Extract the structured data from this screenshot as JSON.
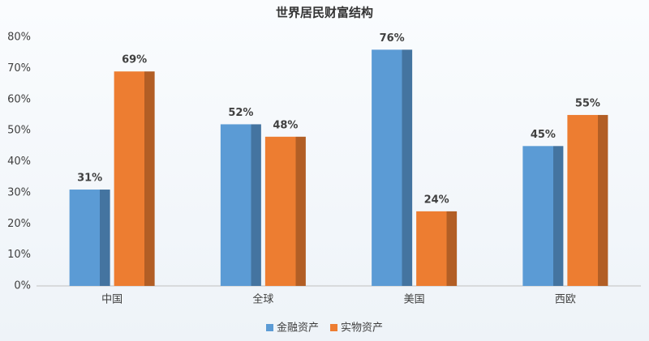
{
  "chart_data": {
    "type": "bar",
    "title": "世界居民财富结构",
    "categories": [
      "中国",
      "全球",
      "美国",
      "西欧"
    ],
    "series": [
      {
        "name": "金融资产",
        "color": "#5b9bd5",
        "values": [
          31,
          52,
          76,
          45
        ],
        "value_labels": [
          "31%",
          "52%",
          "76%",
          "45%"
        ]
      },
      {
        "name": "实物资产",
        "color": "#ed7d31",
        "values": [
          69,
          48,
          24,
          55
        ],
        "value_labels": [
          "69%",
          "48%",
          "24%",
          "55%"
        ]
      }
    ],
    "ylim": [
      0,
      80
    ],
    "yticks": [
      {
        "value": 0,
        "label": "0%"
      },
      {
        "value": 10,
        "label": "10%"
      },
      {
        "value": 20,
        "label": "20%"
      },
      {
        "value": 30,
        "label": "30%"
      },
      {
        "value": 40,
        "label": "40%"
      },
      {
        "value": 50,
        "label": "50%"
      },
      {
        "value": 60,
        "label": "60%"
      },
      {
        "value": 70,
        "label": "70%"
      },
      {
        "value": 80,
        "label": "80%"
      }
    ],
    "grid": false,
    "legend": "bottom"
  }
}
